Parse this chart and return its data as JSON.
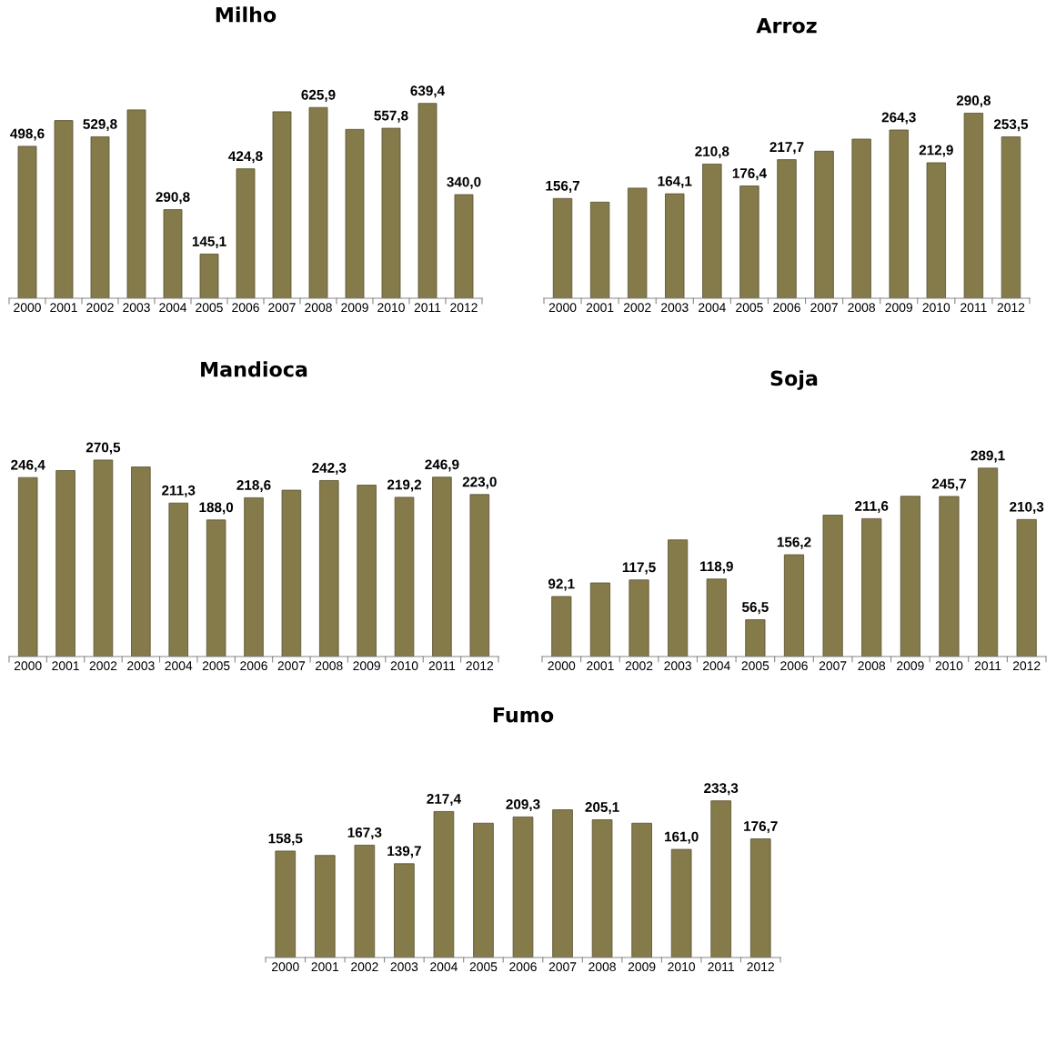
{
  "chart_data": [
    {
      "type": "bar",
      "title": "Milho",
      "categories": [
        "2000",
        "2001",
        "2002",
        "2003",
        "2004",
        "2005",
        "2006",
        "2007",
        "2008",
        "2009",
        "2010",
        "2011",
        "2012"
      ],
      "values": [
        498.6,
        583,
        529.8,
        618,
        290.8,
        145.1,
        424.8,
        612,
        625.9,
        554,
        557.8,
        639.4,
        340.0
      ],
      "value_labels": [
        "498,6",
        null,
        "529,8",
        null,
        "290,8",
        "145,1",
        "424,8",
        null,
        "625,9",
        null,
        "557,8",
        "639,4",
        "340,0"
      ],
      "color": "#857a4a",
      "tick_labels": "x",
      "grid": false
    },
    {
      "type": "bar",
      "title": "Arroz",
      "categories": [
        "2000",
        "2001",
        "2002",
        "2003",
        "2004",
        "2005",
        "2006",
        "2007",
        "2008",
        "2009",
        "2010",
        "2011",
        "2012"
      ],
      "values": [
        156.7,
        151,
        173,
        164.1,
        210.8,
        176.4,
        217.7,
        231,
        250,
        264.3,
        212.9,
        290.8,
        253.5
      ],
      "value_labels": [
        "156,7",
        null,
        null,
        "164,1",
        "210,8",
        "176,4",
        "217,7",
        null,
        null,
        "264,3",
        "212,9",
        "290,8",
        "253,5"
      ],
      "color": "#857a4a",
      "tick_labels": "x",
      "grid": false
    },
    {
      "type": "bar",
      "title": "Mandioca",
      "categories": [
        "2000",
        "2001",
        "2002",
        "2003",
        "2004",
        "2005",
        "2006",
        "2007",
        "2008",
        "2009",
        "2010",
        "2011",
        "2012"
      ],
      "values": [
        246.4,
        256,
        270.5,
        261,
        211.3,
        188.0,
        218.6,
        229,
        242.3,
        236,
        219.2,
        246.9,
        223.0
      ],
      "value_labels": [
        "246,4",
        null,
        "270,5",
        null,
        "211,3",
        "188,0",
        "218,6",
        null,
        "242,3",
        null,
        "219,2",
        "246,9",
        "223,0"
      ],
      "color": "#857a4a",
      "tick_labels": "x",
      "grid": false
    },
    {
      "type": "bar",
      "title": "Soja",
      "categories": [
        "2000",
        "2001",
        "2002",
        "2003",
        "2004",
        "2005",
        "2006",
        "2007",
        "2008",
        "2009",
        "2010",
        "2011",
        "2012"
      ],
      "values": [
        92.1,
        113,
        117.5,
        179,
        118.9,
        56.5,
        156.2,
        217,
        211.6,
        246,
        245.7,
        289.1,
        210.3
      ],
      "value_labels": [
        "92,1",
        null,
        "117,5",
        null,
        "118,9",
        "56,5",
        "156,2",
        null,
        "211,6",
        null,
        "245,7",
        "289,1",
        "210,3"
      ],
      "color": "#857a4a",
      "tick_labels": "x",
      "grid": false
    },
    {
      "type": "bar",
      "title": "Fumo",
      "categories": [
        "2000",
        "2001",
        "2002",
        "2003",
        "2004",
        "2005",
        "2006",
        "2007",
        "2008",
        "2009",
        "2010",
        "2011",
        "2012"
      ],
      "values": [
        158.5,
        152,
        167.3,
        139.7,
        217.4,
        200,
        209.3,
        220,
        205.1,
        200,
        161.0,
        233.3,
        176.7
      ],
      "value_labels": [
        "158,5",
        null,
        "167,3",
        "139,7",
        "217,4",
        null,
        "209,3",
        null,
        "205,1",
        null,
        "161,0",
        "233,3",
        "176,7"
      ],
      "color": "#857a4a",
      "tick_labels": "x",
      "grid": false
    }
  ]
}
